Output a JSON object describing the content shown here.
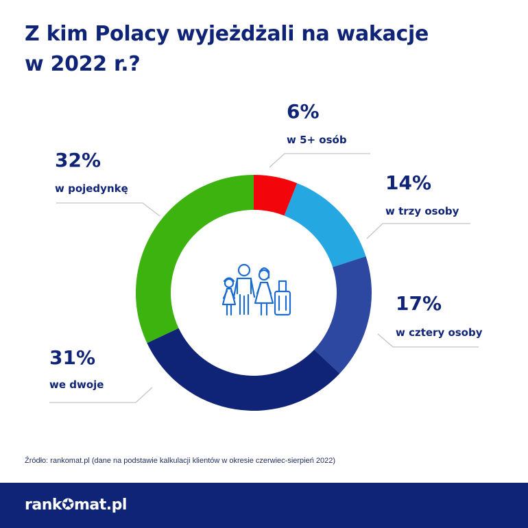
{
  "title": {
    "line1": "Z kim Polacy wyjeżdżali na wakacje",
    "line2": "w 2022 r.?"
  },
  "chart_data": {
    "type": "pie",
    "title": "Z kim Polacy wyjeżdżali na wakacje w 2022 r.?",
    "unit": "%",
    "donut": true,
    "center_icon": "family-with-luggage-icon",
    "slices": [
      {
        "label": "w 5+ osób",
        "value": 6,
        "display": "6%",
        "color": "#f2060b"
      },
      {
        "label": "w trzy osoby",
        "value": 14,
        "display": "14%",
        "color": "#25a7e1"
      },
      {
        "label": "w cztery osoby",
        "value": 17,
        "display": "17%",
        "color": "#2d48a1"
      },
      {
        "label": "we dwoje",
        "value": 31,
        "display": "31%",
        "color": "#0f2476"
      },
      {
        "label": "w pojedynkę",
        "value": 32,
        "display": "32%",
        "color": "#3cb30f"
      }
    ]
  },
  "source": "Źródło: rankomat.pl (dane na podstawie kalkulacji klientów w okresie czerwiec-sierpień 2022)",
  "footer": {
    "logo_pre": "rank",
    "logo_post": "mat.pl"
  }
}
